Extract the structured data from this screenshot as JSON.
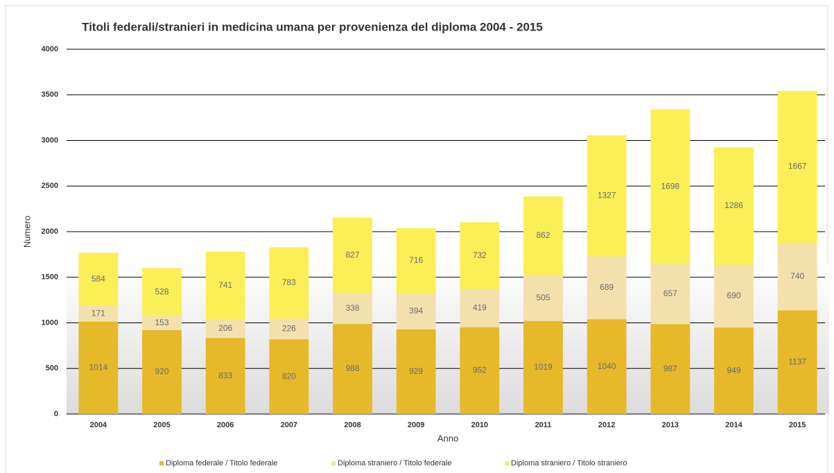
{
  "chart_data": {
    "type": "stacked_bar",
    "title": "Titoli federali/stranieri in medicina umana per provenienza del diploma 2004 - 2015",
    "x_label": "Anno",
    "y_label": "Numero",
    "categories": [
      "2004",
      "2005",
      "2006",
      "2007",
      "2008",
      "2009",
      "2010",
      "2011",
      "2012",
      "2013",
      "2014",
      "2015"
    ],
    "series": [
      {
        "name": "Diploma federale / Titolo federale",
        "color": "#e6b92a",
        "values": [
          1014,
          920,
          833,
          820,
          988,
          929,
          952,
          1019,
          1040,
          987,
          949,
          1137
        ]
      },
      {
        "name": "Diploma straniero / Titolo federale",
        "color": "#f3e0ad",
        "values": [
          171,
          153,
          206,
          226,
          338,
          394,
          419,
          505,
          689,
          657,
          690,
          740
        ]
      },
      {
        "name": "Diploma straniero / Titolo straniero",
        "color": "#fcee57",
        "values": [
          584,
          528,
          741,
          783,
          827,
          716,
          732,
          862,
          1327,
          1698,
          1286,
          1667
        ]
      }
    ],
    "ylim": [
      0,
      4000
    ],
    "yticks": [
      0,
      500,
      1000,
      1500,
      2000,
      2500,
      3000,
      3500,
      4000
    ],
    "grid": true,
    "legend": "bottom"
  }
}
